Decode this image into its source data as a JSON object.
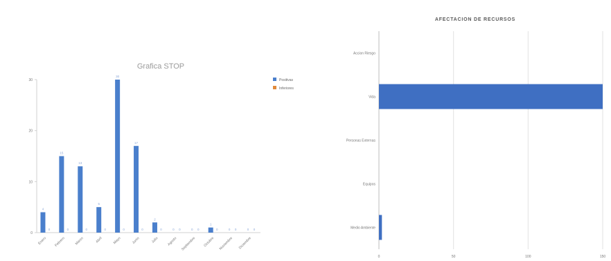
{
  "chart_data": [
    {
      "type": "bar",
      "title": "Grafica STOP",
      "categories": [
        "Enero",
        "Febrero",
        "Marzo",
        "Abril",
        "Mayo",
        "Junio",
        "Julio",
        "Agosto",
        "Septiembre",
        "Octubre",
        "Noviembre",
        "Diciembre"
      ],
      "series": [
        {
          "name": "Positivas",
          "color": "#4a7fcc",
          "values": [
            4,
            15,
            13,
            5,
            30,
            17,
            2,
            0,
            0,
            1,
            0,
            0
          ]
        },
        {
          "name": "Inferiores",
          "color": "#e08a3c",
          "values": [
            0,
            0,
            0,
            0,
            0,
            0,
            0,
            0,
            0,
            0,
            0,
            0
          ]
        }
      ],
      "yticks": [
        "0",
        "10",
        "20",
        "30"
      ],
      "ylim": [
        0,
        30
      ],
      "legend_position": "right",
      "grid": false
    },
    {
      "type": "bar",
      "orientation": "horizontal",
      "title": "AFECTACION DE RECURSOS",
      "categories": [
        "Medio Ambiente",
        "Equipos",
        "Personas Externas",
        "Vida",
        "Accion Riesgo"
      ],
      "values": [
        2,
        0,
        0,
        150,
        0
      ],
      "bar_color": "#3f6fc2",
      "xticks": [
        "0",
        "50",
        "100",
        "150"
      ],
      "xlim": [
        0,
        150
      ],
      "grid": true
    }
  ]
}
